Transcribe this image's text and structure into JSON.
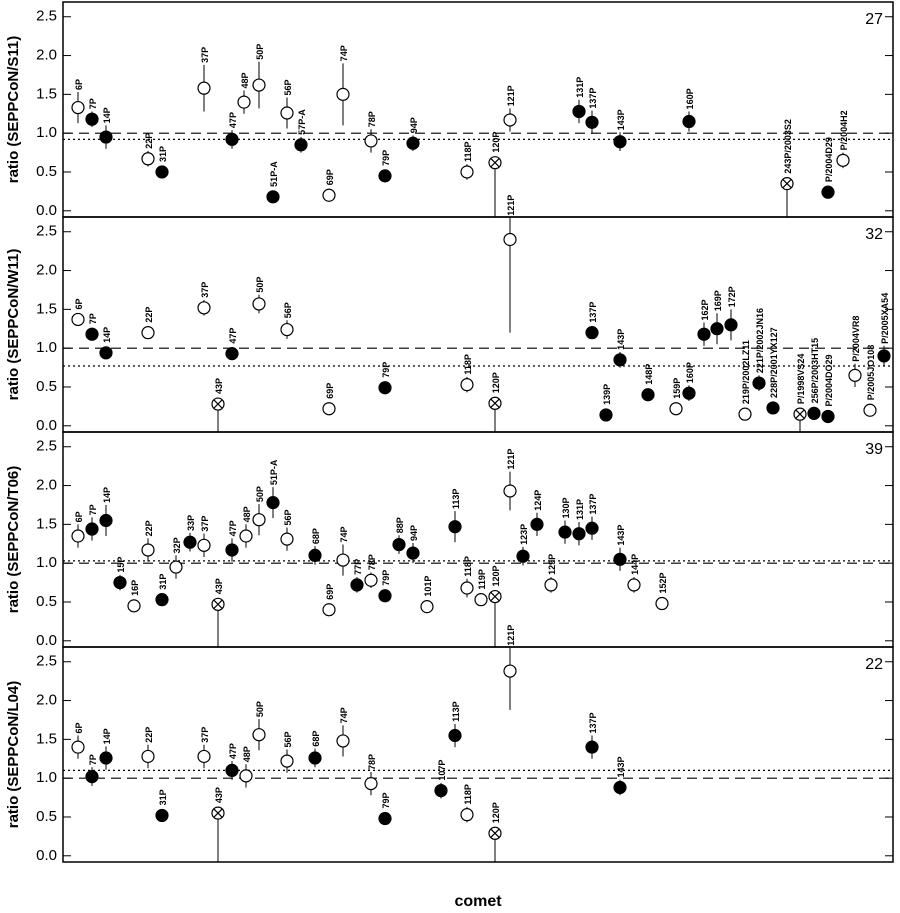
{
  "chart_data": [
    {
      "type": "scatter",
      "ylabel": "ratio (SEPPCoN/S11)",
      "panel_label": "27",
      "xlim": [
        0,
        83
      ],
      "ylim": [
        -0.08,
        2.69
      ],
      "yticks": [
        {
          "value": 0,
          "label": "0.0"
        },
        {
          "value": 0.5,
          "label": "0.5"
        },
        {
          "value": 1,
          "label": "1.0"
        },
        {
          "value": 1.5,
          "label": "1.5"
        },
        {
          "value": 2,
          "label": "2.0"
        },
        {
          "value": 2.5,
          "label": "2.5"
        }
      ],
      "ref_lines": [
        {
          "value": 1,
          "style": "dashed"
        },
        {
          "value": 0.92,
          "style": "dotted"
        }
      ],
      "point_labels": [
        "6P",
        "7P",
        "14P",
        "22P",
        "31P",
        "37P",
        "47P",
        "48P",
        "50P",
        "51P-A",
        "56P",
        "57P-A",
        "69P",
        "74P",
        "78P",
        "79P",
        "94P",
        "118P",
        "120P",
        "121P",
        "131P",
        "137P",
        "143P",
        "160P",
        "243P/2003S2",
        "P/2004D29",
        "P/2004H2"
      ],
      "x": [
        1.5,
        2.9,
        4.3,
        8.5,
        9.9,
        14.1,
        16.9,
        18.1,
        19.6,
        21,
        22.4,
        23.8,
        26.6,
        28,
        30.8,
        32.2,
        35,
        40.4,
        43.2,
        44.7,
        51.6,
        52.9,
        55.7,
        62.6,
        72.4,
        76.5,
        78
      ],
      "values": [
        1.33,
        1.18,
        0.95,
        0.67,
        0.5,
        1.58,
        0.92,
        1.4,
        1.62,
        0.18,
        1.26,
        0.85,
        0.2,
        1.5,
        0.9,
        0.45,
        0.87,
        0.5,
        0.62,
        1.17,
        1.28,
        1.14,
        0.89,
        1.15,
        0.35,
        0.24,
        0.65
      ],
      "err_low": [
        0.2,
        0.1,
        0.15,
        0.1,
        0.07,
        0.3,
        0.12,
        0.15,
        0.3,
        0.03,
        0.2,
        0.1,
        0.05,
        0.4,
        0.15,
        0.07,
        0.1,
        0.1,
        0.7,
        0.15,
        0.15,
        0.15,
        0.12,
        0.13,
        0.45,
        0.03,
        0.1
      ],
      "err_high": [
        0.2,
        0.1,
        0.15,
        0.1,
        0.07,
        0.3,
        0.12,
        0.15,
        0.3,
        0.03,
        0.2,
        0.1,
        0.05,
        0.4,
        0.15,
        0.07,
        0.1,
        0.1,
        0.03,
        0.15,
        0.15,
        0.15,
        0.12,
        0.13,
        0.02,
        0.03,
        0.1
      ],
      "markers": [
        "open",
        "filled",
        "filled",
        "open",
        "filled",
        "open",
        "filled",
        "open",
        "open",
        "filled",
        "open",
        "filled",
        "open",
        "open",
        "open",
        "filled",
        "filled",
        "open",
        "crossed",
        "open",
        "filled",
        "filled",
        "filled",
        "filled",
        "crossed",
        "filled",
        "open"
      ]
    },
    {
      "type": "scatter",
      "ylabel": "ratio (SEPPCoN/W11)",
      "panel_label": "32",
      "xlim": [
        0,
        83
      ],
      "ylim": [
        -0.08,
        2.69
      ],
      "yticks": [
        {
          "value": 0,
          "label": "0.0"
        },
        {
          "value": 0.5,
          "label": "0.5"
        },
        {
          "value": 1,
          "label": "1.0"
        },
        {
          "value": 1.5,
          "label": "1.5"
        },
        {
          "value": 2,
          "label": "2.0"
        },
        {
          "value": 2.5,
          "label": "2.5"
        }
      ],
      "ref_lines": [
        {
          "value": 1,
          "style": "dashed"
        },
        {
          "value": 0.77,
          "style": "dotted"
        }
      ],
      "point_labels": [
        "6P",
        "7P",
        "14P",
        "22P",
        "37P",
        "43P",
        "47P",
        "50P",
        "56P",
        "69P",
        "79P",
        "118P",
        "120P",
        "121P",
        "137P",
        "139P",
        "143P",
        "148P",
        "159P",
        "160P",
        "162P",
        "169P",
        "172P",
        "219P/2002LZ11",
        "221P/2002JN16",
        "228P/2001YX127",
        "P/1998VS24",
        "256P/2003HT15",
        "P/2004DO29",
        "P/2004VR8",
        "P/2005JO108",
        "P/2005XA54"
      ],
      "x": [
        1.5,
        2.9,
        4.3,
        8.5,
        14.1,
        15.5,
        16.9,
        19.6,
        22.4,
        26.6,
        32.2,
        40.4,
        43.2,
        44.7,
        52.9,
        54.3,
        55.7,
        58.5,
        61.3,
        62.6,
        64.1,
        65.4,
        66.8,
        68.2,
        69.6,
        71,
        73.7,
        75.1,
        76.5,
        79.2,
        80.7,
        82.1
      ],
      "values": [
        1.37,
        1.18,
        0.94,
        1.2,
        1.52,
        0.28,
        0.93,
        1.57,
        1.24,
        0.22,
        0.49,
        0.53,
        0.29,
        2.4,
        1.2,
        0.14,
        0.85,
        0.4,
        0.22,
        0.42,
        1.18,
        1.25,
        1.3,
        0.15,
        0.55,
        0.23,
        0.15,
        0.16,
        0.12,
        0.65,
        0.2,
        0.9
      ],
      "err_low": [
        0.08,
        0.05,
        0.06,
        0.08,
        0.1,
        0.4,
        0.05,
        0.12,
        0.12,
        0.07,
        0.04,
        0.1,
        0.4,
        1.2,
        0.08,
        0.04,
        0.1,
        0.08,
        0.05,
        0.1,
        0.15,
        0.2,
        0.2,
        0.05,
        0.1,
        0.05,
        0.25,
        0.05,
        0.03,
        0.15,
        0.05,
        0.13
      ],
      "err_high": [
        0.08,
        0.05,
        0.06,
        0.08,
        0.1,
        0.05,
        0.05,
        0.12,
        0.12,
        0.07,
        0.04,
        0.1,
        0.05,
        0.28,
        0.08,
        0.04,
        0.1,
        0.08,
        0.05,
        0.1,
        0.15,
        0.2,
        0.2,
        0.05,
        0.1,
        0.05,
        0.05,
        0.05,
        0.03,
        0.15,
        0.05,
        0.13
      ],
      "markers": [
        "open",
        "filled",
        "filled",
        "open",
        "open",
        "crossed",
        "filled",
        "open",
        "open",
        "open",
        "filled",
        "open",
        "crossed",
        "open",
        "filled",
        "filled",
        "filled",
        "filled",
        "open",
        "filled",
        "filled",
        "filled",
        "filled",
        "open",
        "filled",
        "filled",
        "crossed",
        "filled",
        "filled",
        "open",
        "open",
        "filled"
      ]
    },
    {
      "type": "scatter",
      "ylabel": "ratio (SEPPCoN/T06)",
      "panel_label": "39",
      "xlim": [
        0,
        83
      ],
      "ylim": [
        -0.08,
        2.69
      ],
      "yticks": [
        {
          "value": 0,
          "label": "0.0"
        },
        {
          "value": 0.5,
          "label": "0.5"
        },
        {
          "value": 1,
          "label": "1.0"
        },
        {
          "value": 1.5,
          "label": "1.5"
        },
        {
          "value": 2,
          "label": "2.0"
        },
        {
          "value": 2.5,
          "label": "2.5"
        }
      ],
      "ref_lines": [
        {
          "value": 1,
          "style": "dashed"
        },
        {
          "value": 1.03,
          "style": "dotted"
        }
      ],
      "point_labels": [
        "6P",
        "7P",
        "14P",
        "15P",
        "16P",
        "22P",
        "31P",
        "32P",
        "33P",
        "37P",
        "43P",
        "47P",
        "48P",
        "50P",
        "51P-A",
        "56P",
        "68P",
        "69P",
        "74P",
        "77P",
        "78P",
        "79P",
        "88P",
        "94P",
        "101P",
        "113P",
        "118P",
        "119P",
        "120P",
        "121P",
        "123P",
        "124P",
        "129P",
        "130P",
        "131P",
        "137P",
        "143P",
        "144P",
        "152P"
      ],
      "x": [
        1.5,
        2.9,
        4.3,
        5.7,
        7.1,
        8.5,
        9.9,
        11.3,
        12.7,
        14.1,
        15.5,
        16.9,
        18.3,
        19.6,
        21,
        22.4,
        25.2,
        26.6,
        28,
        29.4,
        30.8,
        32.2,
        33.6,
        35,
        36.4,
        39.2,
        40.4,
        41.8,
        43.2,
        44.7,
        46,
        47.4,
        48.8,
        50.2,
        51.6,
        52.9,
        55.7,
        57.1,
        59.9
      ],
      "values": [
        1.35,
        1.44,
        1.55,
        0.75,
        0.45,
        1.17,
        0.53,
        0.95,
        1.27,
        1.23,
        0.47,
        1.17,
        1.35,
        1.56,
        1.78,
        1.31,
        1.1,
        0.4,
        1.04,
        0.72,
        0.78,
        0.58,
        1.24,
        1.13,
        0.44,
        1.47,
        0.68,
        0.53,
        0.57,
        1.93,
        1.09,
        1.5,
        0.72,
        1.4,
        1.38,
        1.45,
        1.05,
        0.72,
        0.48
      ],
      "err_low": [
        0.15,
        0.15,
        0.2,
        0.1,
        0.08,
        0.15,
        0.08,
        0.15,
        0.12,
        0.15,
        0.6,
        0.15,
        0.15,
        0.2,
        0.2,
        0.15,
        0.12,
        0.08,
        0.2,
        0.1,
        0.1,
        0.08,
        0.12,
        0.13,
        0.08,
        0.2,
        0.12,
        0.08,
        0.7,
        0.25,
        0.12,
        0.15,
        0.1,
        0.15,
        0.15,
        0.15,
        0.15,
        0.1,
        0.08
      ],
      "err_high": [
        0.15,
        0.15,
        0.2,
        0.1,
        0.08,
        0.15,
        0.08,
        0.15,
        0.12,
        0.15,
        0.03,
        0.15,
        0.15,
        0.2,
        0.2,
        0.15,
        0.12,
        0.08,
        0.2,
        0.1,
        0.1,
        0.08,
        0.12,
        0.13,
        0.08,
        0.2,
        0.12,
        0.08,
        0.03,
        0.25,
        0.12,
        0.15,
        0.1,
        0.15,
        0.15,
        0.15,
        0.15,
        0.1,
        0.08
      ],
      "markers": [
        "open",
        "filled",
        "filled",
        "filled",
        "open",
        "open",
        "filled",
        "open",
        "filled",
        "open",
        "crossed",
        "filled",
        "open",
        "open",
        "filled",
        "open",
        "filled",
        "open",
        "open",
        "filled",
        "open",
        "filled",
        "filled",
        "filled",
        "open",
        "filled",
        "open",
        "open",
        "crossed",
        "open",
        "filled",
        "filled",
        "open",
        "filled",
        "filled",
        "filled",
        "filled",
        "open",
        "open"
      ]
    },
    {
      "type": "scatter",
      "ylabel": "ratio (SEPPCoN/L04)",
      "panel_label": "22",
      "xlabel": "comet",
      "xlim": [
        0,
        83
      ],
      "ylim": [
        -0.08,
        2.69
      ],
      "yticks": [
        {
          "value": 0,
          "label": "0.0"
        },
        {
          "value": 0.5,
          "label": "0.5"
        },
        {
          "value": 1,
          "label": "1.0"
        },
        {
          "value": 1.5,
          "label": "1.5"
        },
        {
          "value": 2,
          "label": "2.0"
        },
        {
          "value": 2.5,
          "label": "2.5"
        }
      ],
      "ref_lines": [
        {
          "value": 1,
          "style": "dashed"
        },
        {
          "value": 1.1,
          "style": "dotted"
        }
      ],
      "point_labels": [
        "6P",
        "7P",
        "14P",
        "22P",
        "31P",
        "37P",
        "43P",
        "47P",
        "48P",
        "50P",
        "56P",
        "68P",
        "74P",
        "78P",
        "79P",
        "107P",
        "113P",
        "118P",
        "120P",
        "121P",
        "137P",
        "143P"
      ],
      "x": [
        1.5,
        2.9,
        4.3,
        8.5,
        9.9,
        14.1,
        15.5,
        16.9,
        18.3,
        19.6,
        22.4,
        25.2,
        28,
        30.8,
        32.2,
        37.8,
        39.2,
        40.4,
        43.2,
        44.7,
        52.9,
        55.7
      ],
      "values": [
        1.4,
        1.02,
        1.26,
        1.28,
        0.52,
        1.28,
        0.55,
        1.1,
        1.03,
        1.56,
        1.22,
        1.26,
        1.48,
        0.93,
        0.48,
        0.84,
        1.55,
        0.53,
        0.29,
        2.38,
        1.4,
        0.88
      ],
      "err_low": [
        0.15,
        0.12,
        0.15,
        0.15,
        0.07,
        0.15,
        0.65,
        0.12,
        0.15,
        0.2,
        0.15,
        0.12,
        0.2,
        0.15,
        0.06,
        0.1,
        0.15,
        0.1,
        0.4,
        0.5,
        0.15,
        0.1
      ],
      "err_high": [
        0.15,
        0.12,
        0.15,
        0.15,
        0.07,
        0.15,
        0.05,
        0.12,
        0.15,
        0.2,
        0.15,
        0.12,
        0.2,
        0.15,
        0.06,
        0.1,
        0.15,
        0.1,
        0.04,
        0.3,
        0.15,
        0.1
      ],
      "markers": [
        "open",
        "filled",
        "filled",
        "open",
        "filled",
        "open",
        "crossed",
        "filled",
        "open",
        "open",
        "open",
        "filled",
        "open",
        "open",
        "filled",
        "filled",
        "filled",
        "open",
        "crossed",
        "open",
        "filled",
        "filled"
      ]
    }
  ]
}
